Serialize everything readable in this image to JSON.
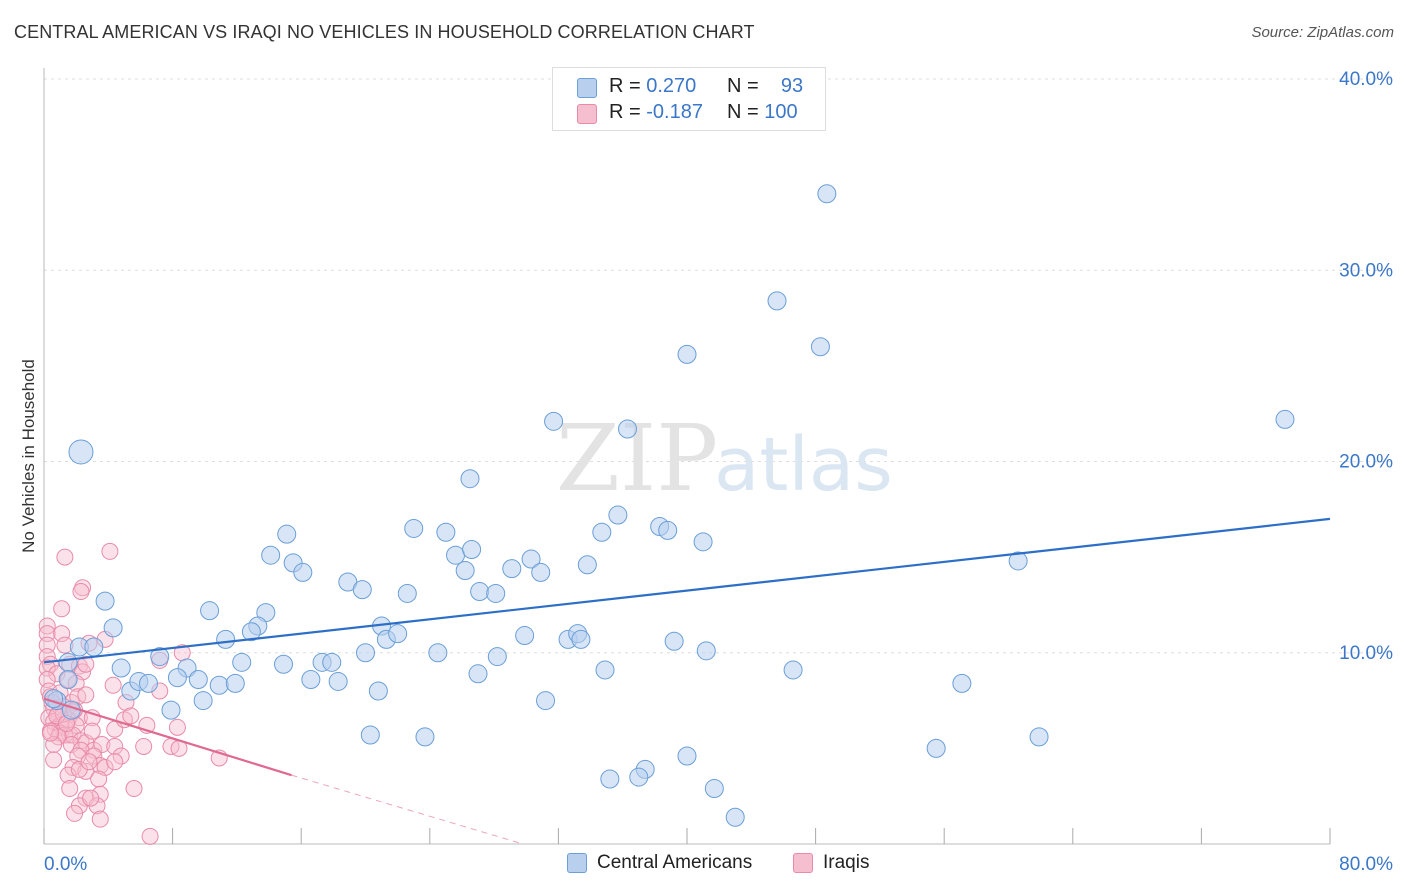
{
  "title": "CENTRAL AMERICAN VS IRAQI NO VEHICLES IN HOUSEHOLD CORRELATION CHART",
  "source": "Source: ZipAtlas.com",
  "watermark": {
    "zip": "ZIP",
    "atlas": "atlas"
  },
  "legend_top": [
    {
      "r_label": "R =",
      "r_value": "0.270",
      "n_label": "N =",
      "n_value": "93",
      "color": "#b8d0ee"
    },
    {
      "r_label": "R =",
      "r_value": "-0.187",
      "n_label": "N =",
      "n_value": "100",
      "color": "#f6bfd0"
    }
  ],
  "legend_bottom": [
    {
      "label": "Central Americans",
      "color": "#b8d0ee"
    },
    {
      "label": "Iraqis",
      "color": "#f6bfd0"
    }
  ],
  "chart_data": {
    "type": "scatter",
    "title": "CENTRAL AMERICAN VS IRAQI NO VEHICLES IN HOUSEHOLD CORRELATION CHART",
    "xlabel": "",
    "ylabel": "No Vehicles in Household",
    "xlim": [
      0,
      80
    ],
    "ylim": [
      0,
      40
    ],
    "x_ticks": [
      "0.0%",
      "80.0%"
    ],
    "y_ticks": [
      "10.0%",
      "20.0%",
      "30.0%",
      "40.0%"
    ],
    "y_tick_values": [
      10,
      20,
      30,
      40
    ],
    "colors": {
      "blue_fill": "#b8d0ee",
      "blue_stroke": "#6a9fd8",
      "blue_line": "#2d6fc7",
      "pink_fill": "#f6bfd0",
      "pink_stroke": "#e98aa9",
      "pink_line": "#e06990"
    },
    "series": [
      {
        "name": "Central Americans",
        "trend": {
          "x1": 0,
          "y1": 9.5,
          "x2": 80,
          "y2": 17.0
        },
        "points": [
          [
            2.3,
            20.5
          ],
          [
            48.7,
            34.0
          ],
          [
            45.6,
            28.4
          ],
          [
            40.0,
            25.6
          ],
          [
            48.3,
            26.0
          ],
          [
            31.7,
            22.1
          ],
          [
            36.3,
            21.7
          ],
          [
            77.2,
            22.2
          ],
          [
            26.5,
            19.1
          ],
          [
            15.1,
            16.2
          ],
          [
            23.0,
            16.5
          ],
          [
            25.0,
            16.3
          ],
          [
            34.7,
            16.3
          ],
          [
            35.7,
            17.2
          ],
          [
            38.3,
            16.6
          ],
          [
            38.8,
            16.4
          ],
          [
            41.0,
            15.8
          ],
          [
            14.1,
            15.1
          ],
          [
            15.5,
            14.7
          ],
          [
            16.1,
            14.2
          ],
          [
            25.6,
            15.1
          ],
          [
            26.2,
            14.3
          ],
          [
            26.6,
            15.4
          ],
          [
            29.1,
            14.4
          ],
          [
            30.3,
            14.9
          ],
          [
            30.9,
            14.2
          ],
          [
            33.8,
            14.6
          ],
          [
            60.6,
            14.8
          ],
          [
            18.9,
            13.7
          ],
          [
            19.8,
            13.3
          ],
          [
            22.6,
            13.1
          ],
          [
            27.1,
            13.2
          ],
          [
            28.1,
            13.1
          ],
          [
            3.8,
            12.7
          ],
          [
            10.3,
            12.2
          ],
          [
            13.8,
            12.1
          ],
          [
            4.3,
            11.3
          ],
          [
            13.3,
            11.4
          ],
          [
            12.9,
            11.1
          ],
          [
            21.0,
            11.4
          ],
          [
            21.3,
            10.7
          ],
          [
            22.0,
            11.0
          ],
          [
            29.9,
            10.9
          ],
          [
            32.6,
            10.7
          ],
          [
            33.2,
            11.0
          ],
          [
            33.4,
            10.7
          ],
          [
            39.2,
            10.6
          ],
          [
            2.2,
            10.3
          ],
          [
            3.1,
            10.3
          ],
          [
            11.3,
            10.7
          ],
          [
            20.0,
            10.0
          ],
          [
            24.5,
            10.0
          ],
          [
            28.2,
            9.8
          ],
          [
            41.2,
            10.1
          ],
          [
            1.5,
            9.5
          ],
          [
            4.8,
            9.2
          ],
          [
            7.2,
            9.8
          ],
          [
            8.9,
            9.2
          ],
          [
            12.3,
            9.5
          ],
          [
            14.9,
            9.4
          ],
          [
            17.3,
            9.5
          ],
          [
            17.9,
            9.5
          ],
          [
            27.0,
            8.9
          ],
          [
            34.9,
            9.1
          ],
          [
            46.6,
            9.1
          ],
          [
            1.5,
            8.6
          ],
          [
            5.4,
            8.0
          ],
          [
            5.9,
            8.5
          ],
          [
            6.5,
            8.4
          ],
          [
            8.3,
            8.7
          ],
          [
            9.6,
            8.6
          ],
          [
            10.9,
            8.3
          ],
          [
            11.9,
            8.4
          ],
          [
            16.6,
            8.6
          ],
          [
            18.3,
            8.5
          ],
          [
            20.8,
            8.0
          ],
          [
            57.1,
            8.4
          ],
          [
            0.8,
            7.5
          ],
          [
            7.9,
            7.0
          ],
          [
            9.9,
            7.5
          ],
          [
            31.2,
            7.5
          ],
          [
            1.7,
            7.0
          ],
          [
            20.3,
            5.7
          ],
          [
            23.7,
            5.6
          ],
          [
            55.5,
            5.0
          ],
          [
            61.9,
            5.6
          ],
          [
            37.4,
            3.9
          ],
          [
            40.0,
            4.6
          ],
          [
            35.2,
            3.4
          ],
          [
            37.0,
            3.5
          ],
          [
            41.7,
            2.9
          ],
          [
            43.0,
            1.4
          ],
          [
            0.6,
            7.6
          ]
        ]
      },
      {
        "name": "Iraqis",
        "trend": {
          "x1": 0,
          "y1": 7.6,
          "x2": 15.4,
          "y2": 3.6,
          "dash_to_x": 29.8,
          "dash_to_y": 0
        },
        "points": [
          [
            4.1,
            15.3
          ],
          [
            1.3,
            15.0
          ],
          [
            2.4,
            13.4
          ],
          [
            2.3,
            13.2
          ],
          [
            1.1,
            12.3
          ],
          [
            0.2,
            11.4
          ],
          [
            0.2,
            11.0
          ],
          [
            1.1,
            11.0
          ],
          [
            0.2,
            10.4
          ],
          [
            2.8,
            10.5
          ],
          [
            1.3,
            10.4
          ],
          [
            3.8,
            10.7
          ],
          [
            8.6,
            10.0
          ],
          [
            0.2,
            9.8
          ],
          [
            0.4,
            9.4
          ],
          [
            0.2,
            9.2
          ],
          [
            1.6,
            9.4
          ],
          [
            2.2,
            9.3
          ],
          [
            2.4,
            9.0
          ],
          [
            2.6,
            9.4
          ],
          [
            7.2,
            9.6
          ],
          [
            0.8,
            8.9
          ],
          [
            1.5,
            8.6
          ],
          [
            2.0,
            8.4
          ],
          [
            0.2,
            8.6
          ],
          [
            4.3,
            8.3
          ],
          [
            0.3,
            8.0
          ],
          [
            0.4,
            7.7
          ],
          [
            1.0,
            7.9
          ],
          [
            1.7,
            7.4
          ],
          [
            2.1,
            7.7
          ],
          [
            2.6,
            7.8
          ],
          [
            0.5,
            7.4
          ],
          [
            1.2,
            7.2
          ],
          [
            0.6,
            7.1
          ],
          [
            0.9,
            6.8
          ],
          [
            1.8,
            6.9
          ],
          [
            2.2,
            6.6
          ],
          [
            5.1,
            7.4
          ],
          [
            7.2,
            8.0
          ],
          [
            0.3,
            6.6
          ],
          [
            0.6,
            6.4
          ],
          [
            1.0,
            6.2
          ],
          [
            1.5,
            6.5
          ],
          [
            0.7,
            6.0
          ],
          [
            1.3,
            6.1
          ],
          [
            0.4,
            5.9
          ],
          [
            1.0,
            5.8
          ],
          [
            1.6,
            5.7
          ],
          [
            2.0,
            6.2
          ],
          [
            1.3,
            5.7
          ],
          [
            0.9,
            5.6
          ],
          [
            1.8,
            5.7
          ],
          [
            2.3,
            5.4
          ],
          [
            4.4,
            6.0
          ],
          [
            5.0,
            6.5
          ],
          [
            5.4,
            6.7
          ],
          [
            6.4,
            6.2
          ],
          [
            8.3,
            6.1
          ],
          [
            0.6,
            5.2
          ],
          [
            1.7,
            5.2
          ],
          [
            2.6,
            5.3
          ],
          [
            3.1,
            4.9
          ],
          [
            3.6,
            5.2
          ],
          [
            4.4,
            5.1
          ],
          [
            6.2,
            5.1
          ],
          [
            7.9,
            5.1
          ],
          [
            2.3,
            4.9
          ],
          [
            2.1,
            4.6
          ],
          [
            3.1,
            4.6
          ],
          [
            4.8,
            4.6
          ],
          [
            8.4,
            5.0
          ],
          [
            0.6,
            4.4
          ],
          [
            1.8,
            4.0
          ],
          [
            2.6,
            3.8
          ],
          [
            3.5,
            4.1
          ],
          [
            3.8,
            4.0
          ],
          [
            4.4,
            4.3
          ],
          [
            1.5,
            3.6
          ],
          [
            2.2,
            3.9
          ],
          [
            3.4,
            3.4
          ],
          [
            10.9,
            4.5
          ],
          [
            1.6,
            2.9
          ],
          [
            5.6,
            2.9
          ],
          [
            2.6,
            2.4
          ],
          [
            3.5,
            2.6
          ],
          [
            2.2,
            2.0
          ],
          [
            3.3,
            2.0
          ],
          [
            1.9,
            1.6
          ],
          [
            3.5,
            1.3
          ],
          [
            6.6,
            0.4
          ],
          [
            0.4,
            5.8
          ],
          [
            1.2,
            6.8
          ],
          [
            1.9,
            7.0
          ],
          [
            0.8,
            6.7
          ],
          [
            3.0,
            6.6
          ],
          [
            1.4,
            6.3
          ],
          [
            2.8,
            4.3
          ],
          [
            2.9,
            2.4
          ],
          [
            3.0,
            5.9
          ]
        ]
      }
    ]
  }
}
